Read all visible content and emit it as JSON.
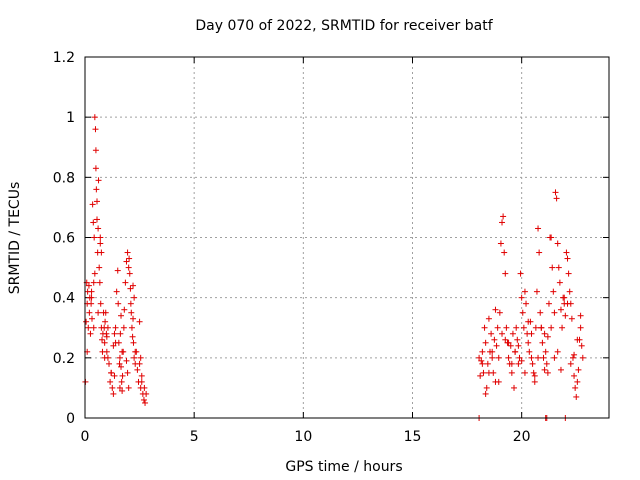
{
  "chart_data": {
    "type": "scatter",
    "title": "Day 070 of 2022, SRMTID for receiver batf",
    "xlabel": "GPS time / hours",
    "ylabel": "SRMTID / TECUs",
    "xlim": [
      0,
      24
    ],
    "ylim": [
      0,
      1.2
    ],
    "xticks": [
      0,
      5,
      10,
      15,
      20
    ],
    "xtick_labels": [
      "0",
      "5",
      "10",
      "15",
      "20"
    ],
    "yticks": [
      0,
      0.2,
      0.4,
      0.6,
      0.8,
      1.0,
      1.2
    ],
    "ytick_labels": [
      "0",
      "0.2",
      "0.4",
      "0.6",
      "0.8",
      "1",
      "1.2"
    ],
    "grid": true,
    "marker": "+",
    "color": "#e00000",
    "series": [
      {
        "name": "SRMTID",
        "x": [
          0.02,
          0.05,
          0.08,
          0.1,
          0.12,
          0.15,
          0.18,
          0.2,
          0.22,
          0.25,
          0.28,
          0.3,
          0.32,
          0.35,
          0.38,
          0.4,
          0.42,
          0.45,
          0.48,
          0.5,
          0.5,
          0.52,
          0.55,
          0.55,
          0.58,
          0.6,
          0.62,
          0.65,
          0.68,
          0.7,
          0.72,
          0.75,
          0.78,
          0.8,
          0.82,
          0.85,
          0.88,
          0.9,
          0.92,
          0.95,
          0.98,
          1.0,
          1.05,
          1.1,
          1.15,
          1.2,
          1.25,
          1.3,
          1.35,
          1.4,
          1.45,
          1.5,
          1.52,
          1.55,
          1.58,
          1.6,
          1.62,
          1.65,
          1.68,
          1.7,
          1.72,
          1.75,
          1.78,
          1.8,
          1.85,
          1.9,
          1.95,
          2.0,
          2.02,
          2.05,
          2.08,
          2.1,
          2.12,
          2.15,
          2.18,
          2.2,
          2.22,
          2.25,
          2.3,
          2.35,
          2.4,
          2.45,
          2.5,
          2.55,
          2.6,
          2.65,
          2.7,
          2.72,
          2.75,
          0.3,
          0.6,
          0.9,
          1.2,
          1.4,
          1.7,
          2.0,
          2.3,
          2.6,
          0.45,
          0.75,
          1.05,
          1.35,
          1.65,
          1.95,
          2.25,
          2.55,
          0.1,
          0.4,
          0.7,
          1.0,
          1.3,
          1.6,
          1.9,
          2.2,
          2.5,
          2.8,
          18.05,
          18.1,
          18.15,
          18.2,
          18.25,
          18.3,
          18.35,
          18.4,
          18.45,
          18.5,
          18.55,
          18.6,
          18.65,
          18.7,
          18.75,
          18.8,
          18.85,
          18.9,
          18.95,
          19.0,
          19.05,
          19.1,
          19.15,
          19.2,
          19.25,
          19.3,
          19.35,
          19.4,
          19.45,
          19.5,
          19.55,
          19.6,
          19.65,
          19.7,
          19.75,
          19.8,
          19.85,
          19.9,
          19.95,
          20.0,
          20.05,
          20.1,
          20.15,
          20.2,
          20.25,
          20.3,
          20.35,
          20.4,
          20.45,
          20.5,
          20.55,
          20.6,
          20.65,
          20.7,
          20.75,
          20.8,
          20.85,
          20.9,
          20.95,
          21.0,
          21.05,
          21.1,
          21.15,
          21.2,
          21.25,
          21.3,
          21.35,
          21.4,
          21.45,
          21.5,
          21.55,
          21.6,
          21.65,
          21.7,
          21.75,
          21.8,
          21.85,
          21.9,
          21.95,
          22.0,
          22.05,
          22.1,
          22.15,
          22.2,
          22.25,
          22.3,
          22.35,
          22.4,
          22.45,
          22.5,
          22.55,
          22.6,
          22.65,
          22.7,
          22.75,
          22.8,
          18.2,
          18.5,
          18.8,
          19.1,
          19.4,
          19.7,
          20.0,
          20.3,
          20.6,
          20.9,
          21.2,
          21.5,
          21.8,
          22.1,
          22.4,
          22.7,
          18.35,
          18.65,
          18.95,
          19.25,
          19.55,
          19.85,
          20.15,
          20.45,
          20.75,
          21.05,
          21.35,
          21.65,
          21.95,
          22.25,
          22.55,
          18.05,
          21.1,
          21.15,
          22.0
        ],
        "y": [
          0.12,
          0.32,
          0.45,
          0.38,
          0.42,
          0.3,
          0.44,
          0.35,
          0.4,
          0.28,
          0.38,
          0.42,
          0.33,
          0.71,
          0.65,
          0.45,
          0.6,
          1.0,
          0.96,
          0.89,
          0.83,
          0.76,
          0.72,
          0.66,
          0.55,
          0.63,
          0.79,
          0.5,
          0.45,
          0.6,
          0.38,
          0.3,
          0.26,
          0.22,
          0.28,
          0.35,
          0.3,
          0.25,
          0.32,
          0.35,
          0.28,
          0.22,
          0.2,
          0.18,
          0.12,
          0.15,
          0.1,
          0.08,
          0.14,
          0.3,
          0.42,
          0.49,
          0.38,
          0.25,
          0.18,
          0.2,
          0.28,
          0.17,
          0.12,
          0.09,
          0.14,
          0.22,
          0.3,
          0.36,
          0.45,
          0.52,
          0.55,
          0.5,
          0.53,
          0.48,
          0.43,
          0.38,
          0.35,
          0.3,
          0.27,
          0.33,
          0.25,
          0.2,
          0.18,
          0.22,
          0.16,
          0.12,
          0.18,
          0.1,
          0.14,
          0.08,
          0.06,
          0.1,
          0.05,
          0.4,
          0.35,
          0.2,
          0.15,
          0.25,
          0.22,
          0.1,
          0.22,
          0.12,
          0.48,
          0.55,
          0.3,
          0.28,
          0.34,
          0.15,
          0.4,
          0.2,
          0.22,
          0.3,
          0.58,
          0.27,
          0.24,
          0.1,
          0.19,
          0.44,
          0.32,
          0.08,
          0.2,
          0.14,
          0.19,
          0.22,
          0.15,
          0.3,
          0.25,
          0.1,
          0.18,
          0.33,
          0.22,
          0.28,
          0.2,
          0.15,
          0.26,
          0.12,
          0.24,
          0.3,
          0.2,
          0.35,
          0.58,
          0.65,
          0.67,
          0.55,
          0.48,
          0.3,
          0.25,
          0.2,
          0.18,
          0.24,
          0.15,
          0.28,
          0.1,
          0.22,
          0.3,
          0.26,
          0.18,
          0.2,
          0.48,
          0.4,
          0.35,
          0.3,
          0.42,
          0.38,
          0.28,
          0.25,
          0.22,
          0.32,
          0.2,
          0.18,
          0.15,
          0.12,
          0.3,
          0.42,
          0.63,
          0.55,
          0.35,
          0.3,
          0.25,
          0.2,
          0.28,
          0.22,
          0.18,
          0.15,
          0.38,
          0.6,
          0.6,
          0.5,
          0.42,
          0.35,
          0.75,
          0.73,
          0.58,
          0.5,
          0.45,
          0.36,
          0.3,
          0.4,
          0.38,
          0.34,
          0.55,
          0.53,
          0.48,
          0.42,
          0.38,
          0.33,
          0.2,
          0.14,
          0.1,
          0.07,
          0.12,
          0.16,
          0.26,
          0.3,
          0.24,
          0.2,
          0.18,
          0.15,
          0.36,
          0.28,
          0.25,
          0.22,
          0.19,
          0.32,
          0.14,
          0.3,
          0.27,
          0.2,
          0.16,
          0.38,
          0.21,
          0.34,
          0.08,
          0.22,
          0.12,
          0.26,
          0.18,
          0.24,
          0.15,
          0.28,
          0.2,
          0.16,
          0.3,
          0.22,
          0.4,
          0.18,
          0.26,
          0.0,
          0.0,
          0.0,
          0.0
        ]
      }
    ]
  }
}
